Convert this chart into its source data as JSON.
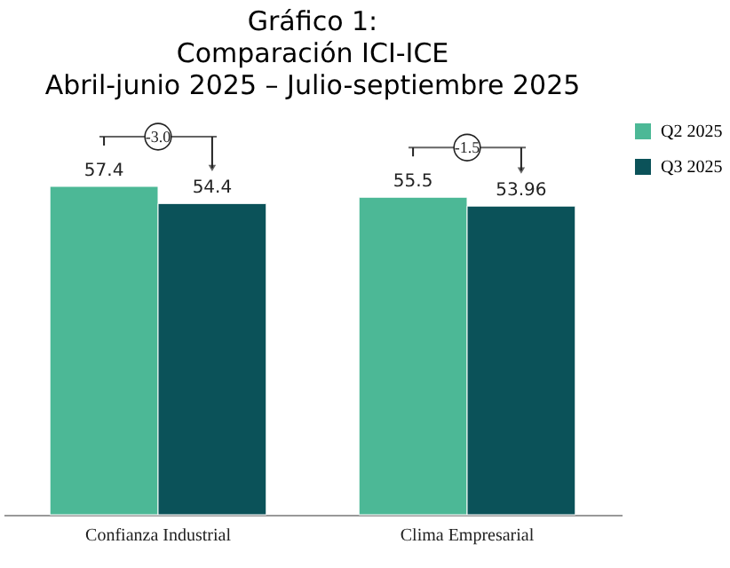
{
  "chart_data": {
    "type": "bar",
    "title": [
      "Gráfico 1:",
      "Comparación ICI-ICE",
      "Abril-junio 2025 – Julio-septiembre 2025"
    ],
    "categories": [
      "Confianza Industrial",
      "Clima Empresarial"
    ],
    "series": [
      {
        "name": "Q2 2025",
        "color": "#4cb896",
        "values": [
          57.4,
          55.5
        ]
      },
      {
        "name": "Q3 2025",
        "color": "#0b5259",
        "values": [
          54.4,
          53.96
        ]
      }
    ],
    "data_labels": true,
    "legend": "right",
    "grid": false,
    "annotations": [
      "-3.0",
      "-1.5"
    ]
  }
}
